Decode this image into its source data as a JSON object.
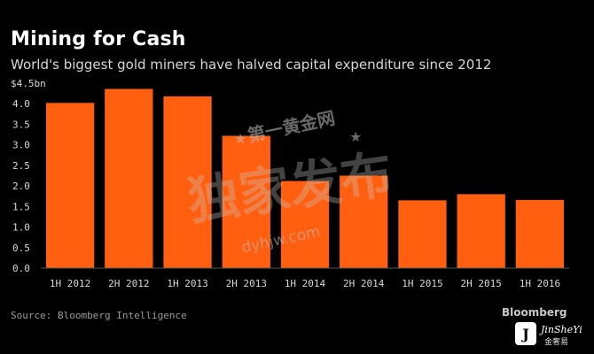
{
  "chart_data": {
    "type": "bar",
    "title": "Mining for Cash",
    "subtitle": "World's biggest gold miners have halved capital expenditure since 2012",
    "categories": [
      "1H 2012",
      "2H 2012",
      "1H 2013",
      "2H 2013",
      "1H 2014",
      "2H 2014",
      "1H 2015",
      "2H 2015",
      "1H 2016"
    ],
    "values": [
      4.02,
      4.36,
      4.18,
      3.22,
      2.12,
      2.25,
      1.65,
      1.8,
      1.66
    ],
    "ylim": [
      0,
      4.5
    ],
    "yticks": [
      "0.0",
      "0.5",
      "1.0",
      "1.5",
      "2.0",
      "2.5",
      "3.0",
      "3.5",
      "4.0",
      "$4.5bn"
    ],
    "ylabel": "",
    "xlabel": "",
    "grid": false,
    "bar_color": "#ff5f0f"
  },
  "footer": {
    "source": "Source: Bloomberg Intelligence",
    "brand": "Bloomberg"
  },
  "watermark": {
    "site_name": "第一黄金网",
    "exclusive": "独家发布",
    "url": "dyhjw.com",
    "badge": "JinSheYi",
    "badge_sub": "金奢易"
  },
  "colors": {
    "background": "#000000",
    "bar": "#ff5f0f",
    "text": "#ffffff",
    "muted": "#9a9a9a"
  }
}
